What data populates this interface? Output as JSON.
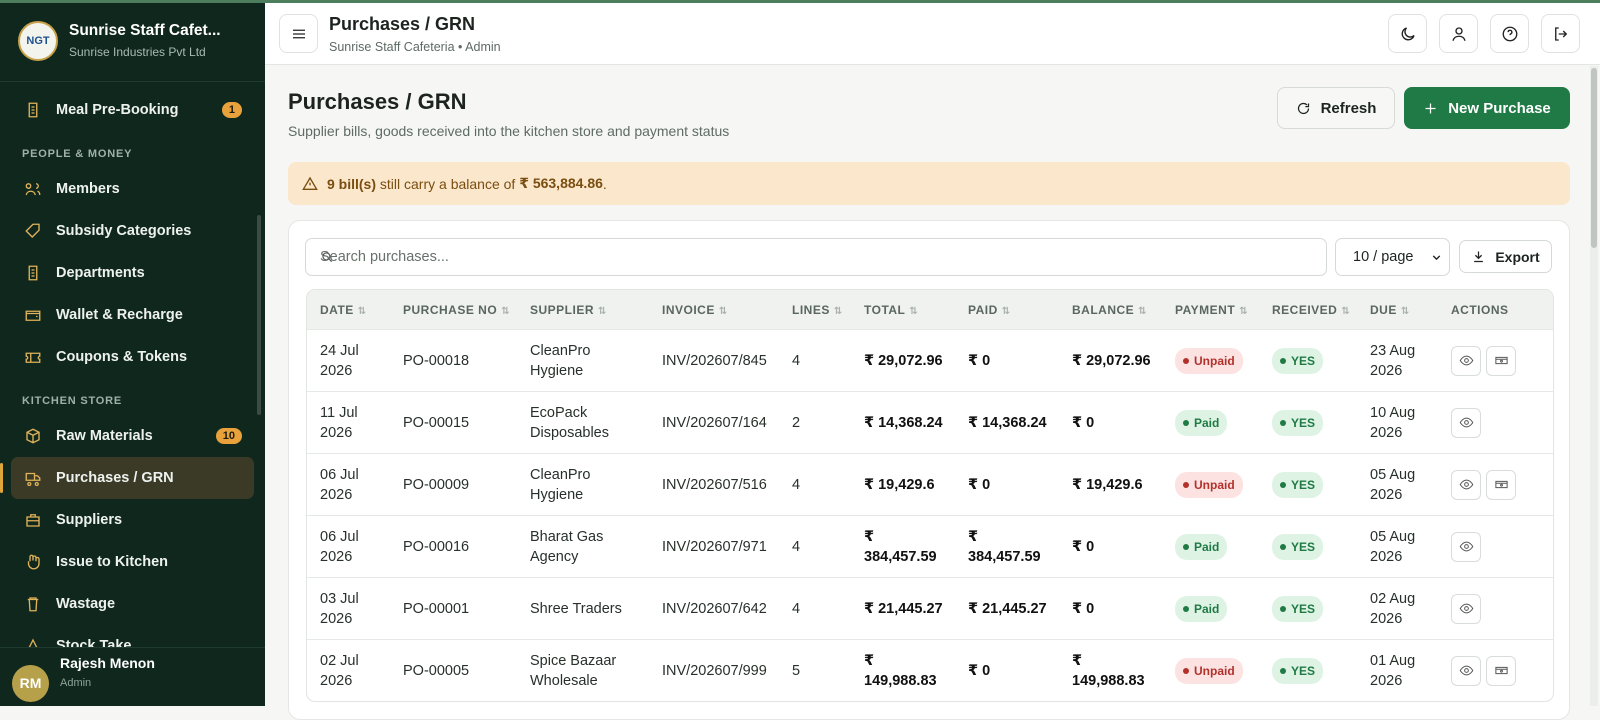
{
  "sidebar": {
    "logo": "NGT",
    "title": "Sunrise Staff Cafet...",
    "subtitle": "Sunrise Industries Pvt Ltd",
    "top_items": [
      {
        "label": "Meal Pre-Booking",
        "badge": "1"
      }
    ],
    "sections": [
      {
        "title": "PEOPLE & MONEY",
        "items": [
          {
            "label": "Members"
          },
          {
            "label": "Subsidy Categories"
          },
          {
            "label": "Departments"
          },
          {
            "label": "Wallet & Recharge"
          },
          {
            "label": "Coupons & Tokens"
          }
        ]
      },
      {
        "title": "KITCHEN STORE",
        "items": [
          {
            "label": "Raw Materials",
            "badge": "10"
          },
          {
            "label": "Purchases / GRN"
          },
          {
            "label": "Suppliers"
          },
          {
            "label": "Issue to Kitchen"
          },
          {
            "label": "Wastage"
          },
          {
            "label": "Stock Take"
          }
        ]
      }
    ],
    "user": {
      "initials": "RM",
      "name": "Rajesh Menon",
      "role": "Admin"
    }
  },
  "header": {
    "title": "Purchases / GRN",
    "subtitle": "Sunrise Staff Cafeteria • Admin"
  },
  "page": {
    "title": "Purchases / GRN",
    "subtitle": "Supplier bills, goods received into the kitchen store and payment status",
    "refresh": "Refresh",
    "new_purchase": "New Purchase"
  },
  "alert": {
    "count": "9 bill(s)",
    "text": " still carry a balance of ",
    "amount": "₹ 563,884.86",
    "end": "."
  },
  "toolbar": {
    "search_placeholder": "Search purchases...",
    "page_size": "10 / page",
    "export": "Export"
  },
  "table": {
    "columns": [
      "DATE",
      "PURCHASE NO",
      "SUPPLIER",
      "INVOICE",
      "LINES",
      "TOTAL",
      "PAID",
      "BALANCE",
      "PAYMENT",
      "RECEIVED",
      "DUE",
      "ACTIONS"
    ],
    "rows": [
      [
        "24 Jul 2026",
        "PO-00018",
        "CleanPro Hygiene",
        "INV/202607/845",
        "4",
        "₹ 29,072.96",
        "₹ 0",
        "₹ 29,072.96",
        "Unpaid",
        "YES",
        "23 Aug 2026"
      ],
      [
        "11 Jul 2026",
        "PO-00015",
        "EcoPack Disposables",
        "INV/202607/164",
        "2",
        "₹ 14,368.24",
        "₹ 14,368.24",
        "₹ 0",
        "Paid",
        "YES",
        "10 Aug 2026"
      ],
      [
        "06 Jul 2026",
        "PO-00009",
        "CleanPro Hygiene",
        "INV/202607/516",
        "4",
        "₹ 19,429.6",
        "₹ 0",
        "₹ 19,429.6",
        "Unpaid",
        "YES",
        "05 Aug 2026"
      ],
      [
        "06 Jul 2026",
        "PO-00016",
        "Bharat Gas Agency",
        "INV/202607/971",
        "4",
        "₹ 384,457.59",
        "₹ 384,457.59",
        "₹ 0",
        "Paid",
        "YES",
        "05 Aug 2026"
      ],
      [
        "03 Jul 2026",
        "PO-00001",
        "Shree Traders",
        "INV/202607/642",
        "4",
        "₹ 21,445.27",
        "₹ 21,445.27",
        "₹ 0",
        "Paid",
        "YES",
        "02 Aug 2026"
      ],
      [
        "02 Jul 2026",
        "PO-00005",
        "Spice Bazaar Wholesale",
        "INV/202607/999",
        "5",
        "₹ 149,988.83",
        "₹ 0",
        "₹ 149,988.83",
        "Unpaid",
        "YES",
        "01 Aug 2026"
      ]
    ]
  }
}
